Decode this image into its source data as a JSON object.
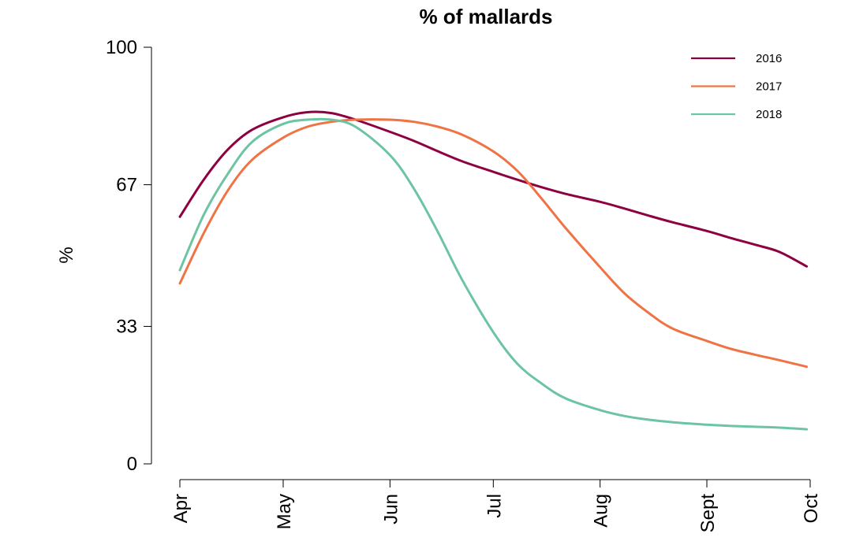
{
  "chart_data": {
    "type": "line",
    "title": "% of mallards",
    "xlabel": "",
    "ylabel": "%",
    "x_ticks": [
      "Apr",
      "May",
      "Jun",
      "Jul",
      "Aug",
      "Sept",
      "Oct"
    ],
    "y_ticks": [
      "0",
      "33",
      "67",
      "100"
    ],
    "ylim": [
      0,
      100
    ],
    "x_domain": [
      "2000-04-01",
      "2000-10-01"
    ],
    "grid": false,
    "legend_position": "top-right",
    "series": [
      {
        "name": "2016",
        "color": "#8e0140",
        "points": [
          [
            "2000-04-01",
            59.3
          ],
          [
            "2000-04-08",
            68.3
          ],
          [
            "2000-04-15",
            75.5
          ],
          [
            "2000-04-22",
            80.2
          ],
          [
            "2000-05-01",
            83.2
          ],
          [
            "2000-05-08",
            84.4
          ],
          [
            "2000-05-15",
            84.2
          ],
          [
            "2000-05-22",
            82.6
          ],
          [
            "2000-06-01",
            79.7
          ],
          [
            "2000-06-08",
            77.5
          ],
          [
            "2000-06-15",
            75.0
          ],
          [
            "2000-06-22",
            72.6
          ],
          [
            "2000-07-01",
            70.1
          ],
          [
            "2000-07-08",
            68.2
          ],
          [
            "2000-07-15",
            66.4
          ],
          [
            "2000-07-22",
            64.8
          ],
          [
            "2000-08-01",
            62.9
          ],
          [
            "2000-08-08",
            61.3
          ],
          [
            "2000-08-15",
            59.6
          ],
          [
            "2000-08-22",
            58.0
          ],
          [
            "2000-09-01",
            55.9
          ],
          [
            "2000-09-08",
            54.2
          ],
          [
            "2000-09-15",
            52.6
          ],
          [
            "2000-09-22",
            50.9
          ],
          [
            "2000-09-30",
            47.4
          ]
        ]
      },
      {
        "name": "2017",
        "color": "#ef7344",
        "points": [
          [
            "2000-04-01",
            43.3
          ],
          [
            "2000-04-08",
            55.5
          ],
          [
            "2000-04-15",
            65.7
          ],
          [
            "2000-04-22",
            73.0
          ],
          [
            "2000-05-01",
            78.3
          ],
          [
            "2000-05-08",
            80.9
          ],
          [
            "2000-05-15",
            82.1
          ],
          [
            "2000-05-22",
            82.6
          ],
          [
            "2000-06-01",
            82.6
          ],
          [
            "2000-06-08",
            82.1
          ],
          [
            "2000-06-15",
            80.9
          ],
          [
            "2000-06-22",
            79.0
          ],
          [
            "2000-07-01",
            75.0
          ],
          [
            "2000-07-08",
            70.3
          ],
          [
            "2000-07-15",
            63.7
          ],
          [
            "2000-07-22",
            56.6
          ],
          [
            "2000-08-01",
            47.2
          ],
          [
            "2000-08-08",
            41.0
          ],
          [
            "2000-08-15",
            36.3
          ],
          [
            "2000-08-22",
            32.5
          ],
          [
            "2000-09-01",
            29.5
          ],
          [
            "2000-09-08",
            27.6
          ],
          [
            "2000-09-15",
            26.2
          ],
          [
            "2000-09-22",
            24.9
          ],
          [
            "2000-09-30",
            23.3
          ]
        ]
      },
      {
        "name": "2018",
        "color": "#6cc4a2",
        "points": [
          [
            "2000-04-01",
            46.5
          ],
          [
            "2000-04-08",
            59.9
          ],
          [
            "2000-04-15",
            69.7
          ],
          [
            "2000-04-22",
            77.3
          ],
          [
            "2000-05-01",
            81.6
          ],
          [
            "2000-05-08",
            82.6
          ],
          [
            "2000-05-15",
            82.6
          ],
          [
            "2000-05-22",
            80.9
          ],
          [
            "2000-06-01",
            74.1
          ],
          [
            "2000-06-08",
            66.0
          ],
          [
            "2000-06-15",
            55.5
          ],
          [
            "2000-06-22",
            44.1
          ],
          [
            "2000-07-01",
            31.6
          ],
          [
            "2000-07-08",
            24.0
          ],
          [
            "2000-07-15",
            19.3
          ],
          [
            "2000-07-22",
            15.7
          ],
          [
            "2000-08-01",
            12.9
          ],
          [
            "2000-08-08",
            11.5
          ],
          [
            "2000-08-15",
            10.6
          ],
          [
            "2000-08-22",
            10.0
          ],
          [
            "2000-09-01",
            9.4
          ],
          [
            "2000-09-08",
            9.1
          ],
          [
            "2000-09-15",
            8.9
          ],
          [
            "2000-09-22",
            8.7
          ],
          [
            "2000-09-30",
            8.3
          ]
        ]
      }
    ]
  }
}
